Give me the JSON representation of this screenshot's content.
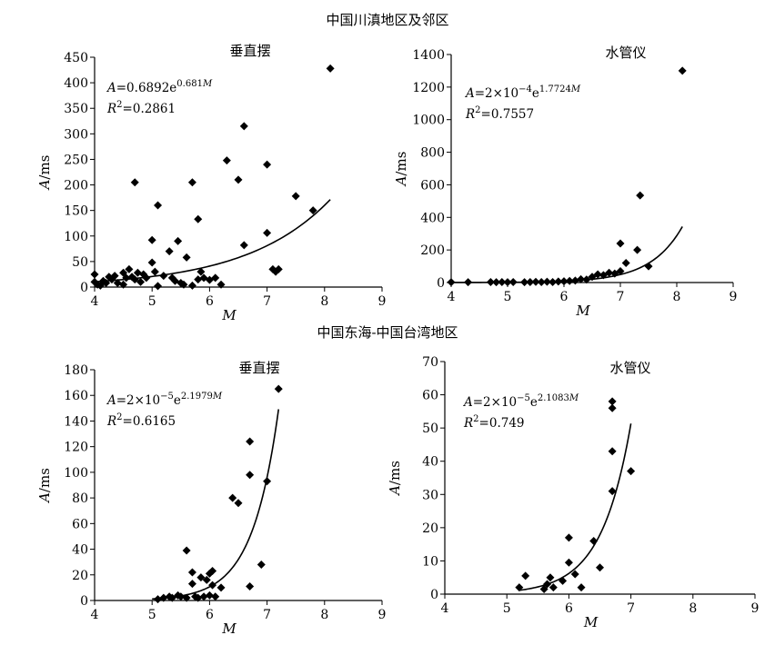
{
  "sections": [
    {
      "title": "中国川滇地区及邻区"
    },
    {
      "title": "中国东海-中国台湾地区"
    }
  ],
  "chart_data": [
    {
      "type": "scatter",
      "title": "垂直摆",
      "xlabel": "M",
      "ylabel": "A/ms",
      "xlim": [
        4,
        9
      ],
      "ylim": [
        0,
        450
      ],
      "xticks": [
        "4",
        "5",
        "6",
        "7",
        "8",
        "9"
      ],
      "yticks": [
        "0",
        "50",
        "100",
        "150",
        "200",
        "250",
        "300",
        "350",
        "400",
        "450"
      ],
      "equation": {
        "prefix": "A",
        "eq": "=0.6892e",
        "exp": "0.681",
        "var": "M"
      },
      "r2": {
        "base": "R",
        "sup": "2",
        "val": "=0.2861"
      },
      "fit": {
        "a": 0.6892,
        "b": 0.681,
        "x_range": [
          4,
          8.1
        ]
      },
      "points": [
        [
          4.0,
          25
        ],
        [
          4.0,
          10
        ],
        [
          4.05,
          5
        ],
        [
          4.1,
          3
        ],
        [
          4.15,
          12
        ],
        [
          4.2,
          8
        ],
        [
          4.25,
          20
        ],
        [
          4.3,
          15
        ],
        [
          4.35,
          22
        ],
        [
          4.4,
          8
        ],
        [
          4.5,
          28
        ],
        [
          4.5,
          5
        ],
        [
          4.55,
          18
        ],
        [
          4.6,
          35
        ],
        [
          4.65,
          20
        ],
        [
          4.7,
          15
        ],
        [
          4.7,
          205
        ],
        [
          4.75,
          28
        ],
        [
          4.8,
          10
        ],
        [
          4.85,
          25
        ],
        [
          4.9,
          18
        ],
        [
          5.0,
          92
        ],
        [
          5.0,
          48
        ],
        [
          5.05,
          30
        ],
        [
          5.1,
          160
        ],
        [
          5.1,
          2
        ],
        [
          5.2,
          22
        ],
        [
          5.3,
          70
        ],
        [
          5.35,
          18
        ],
        [
          5.4,
          12
        ],
        [
          5.45,
          90
        ],
        [
          5.5,
          8
        ],
        [
          5.55,
          5
        ],
        [
          5.6,
          58
        ],
        [
          5.7,
          205
        ],
        [
          5.7,
          3
        ],
        [
          5.8,
          15
        ],
        [
          5.8,
          133
        ],
        [
          5.85,
          30
        ],
        [
          5.9,
          18
        ],
        [
          6.0,
          14
        ],
        [
          6.1,
          18
        ],
        [
          6.2,
          5
        ],
        [
          6.3,
          248
        ],
        [
          6.5,
          210
        ],
        [
          6.6,
          315
        ],
        [
          6.6,
          82
        ],
        [
          7.0,
          240
        ],
        [
          7.0,
          106
        ],
        [
          7.1,
          35
        ],
        [
          7.15,
          30
        ],
        [
          7.2,
          35
        ],
        [
          7.5,
          178
        ],
        [
          7.8,
          150
        ],
        [
          8.1,
          428
        ]
      ]
    },
    {
      "type": "scatter",
      "title": "水管仪",
      "xlabel": "M",
      "ylabel": "A/ms",
      "xlim": [
        4,
        9
      ],
      "ylim": [
        0,
        1400
      ],
      "xticks": [
        "4",
        "5",
        "6",
        "7",
        "8",
        "9"
      ],
      "yticks": [
        "0",
        "200",
        "400",
        "600",
        "800",
        "1000",
        "1200",
        "1400"
      ],
      "equation": {
        "prefix": "A",
        "eq": "=2×10",
        "eqsup": "−4",
        "eq2": "e",
        "exp": "1.7724",
        "var": "M"
      },
      "r2": {
        "base": "R",
        "sup": "2",
        "val": "=0.7557"
      },
      "fit": {
        "a": 0.0002,
        "b": 1.7724,
        "x_range": [
          4,
          8.1
        ]
      },
      "points": [
        [
          4.0,
          2
        ],
        [
          4.3,
          2
        ],
        [
          4.7,
          3
        ],
        [
          4.8,
          2
        ],
        [
          4.9,
          3
        ],
        [
          5.0,
          2
        ],
        [
          5.1,
          3
        ],
        [
          5.3,
          2
        ],
        [
          5.4,
          3
        ],
        [
          5.5,
          4
        ],
        [
          5.6,
          3
        ],
        [
          5.7,
          5
        ],
        [
          5.8,
          3
        ],
        [
          5.9,
          6
        ],
        [
          6.0,
          8
        ],
        [
          6.1,
          10
        ],
        [
          6.2,
          12
        ],
        [
          6.3,
          20
        ],
        [
          6.4,
          18
        ],
        [
          6.5,
          35
        ],
        [
          6.6,
          50
        ],
        [
          6.7,
          45
        ],
        [
          6.8,
          60
        ],
        [
          6.9,
          55
        ],
        [
          7.0,
          70
        ],
        [
          7.0,
          240
        ],
        [
          7.1,
          120
        ],
        [
          7.3,
          200
        ],
        [
          7.35,
          535
        ],
        [
          7.5,
          100
        ],
        [
          8.1,
          1300
        ]
      ]
    },
    {
      "type": "scatter",
      "title": "垂直摆",
      "xlabel": "M",
      "ylabel": "A/ms",
      "xlim": [
        4,
        9
      ],
      "ylim": [
        0,
        180
      ],
      "xticks": [
        "4",
        "5",
        "6",
        "7",
        "8",
        "9"
      ],
      "yticks": [
        "0",
        "20",
        "40",
        "60",
        "80",
        "100",
        "120",
        "140",
        "160",
        "180"
      ],
      "equation": {
        "prefix": "A",
        "eq": "=2×10",
        "eqsup": "−5",
        "eq2": "e",
        "exp": "2.1979",
        "var": "M"
      },
      "r2": {
        "base": "R",
        "sup": "2",
        "val": "=0.6165"
      },
      "fit": {
        "a": 2e-05,
        "b": 2.1979,
        "x_range": [
          5.0,
          7.2
        ]
      },
      "points": [
        [
          5.1,
          1
        ],
        [
          5.2,
          2
        ],
        [
          5.3,
          3
        ],
        [
          5.35,
          2
        ],
        [
          5.45,
          4
        ],
        [
          5.5,
          3
        ],
        [
          5.6,
          39
        ],
        [
          5.6,
          2
        ],
        [
          5.7,
          22
        ],
        [
          5.7,
          13
        ],
        [
          5.75,
          3
        ],
        [
          5.8,
          2
        ],
        [
          5.85,
          18
        ],
        [
          5.9,
          3
        ],
        [
          5.95,
          16
        ],
        [
          6.0,
          21
        ],
        [
          6.0,
          4
        ],
        [
          6.05,
          23
        ],
        [
          6.05,
          12
        ],
        [
          6.1,
          3
        ],
        [
          6.2,
          10
        ],
        [
          6.4,
          80
        ],
        [
          6.5,
          76
        ],
        [
          6.7,
          124
        ],
        [
          6.7,
          98
        ],
        [
          6.7,
          11
        ],
        [
          6.9,
          28
        ],
        [
          7.0,
          93
        ],
        [
          7.2,
          165
        ]
      ]
    },
    {
      "type": "scatter",
      "title": "水管仪",
      "xlabel": "M",
      "ylabel": "A/ms",
      "xlim": [
        4,
        9
      ],
      "ylim": [
        0,
        70
      ],
      "xticks": [
        "4",
        "5",
        "6",
        "7",
        "8",
        "9"
      ],
      "yticks": [
        "0",
        "10",
        "20",
        "30",
        "40",
        "50",
        "60",
        "70"
      ],
      "equation": {
        "prefix": "A",
        "eq": "=2×10",
        "eqsup": "−5",
        "eq2": "e",
        "exp": "2.1083",
        "var": "M"
      },
      "r2": {
        "base": "R",
        "sup": "2",
        "val": "=0.749"
      },
      "fit": {
        "a": 2e-05,
        "b": 2.1083,
        "x_range": [
          5.2,
          7.0
        ]
      },
      "points": [
        [
          5.2,
          2
        ],
        [
          5.3,
          5.5
        ],
        [
          5.6,
          1.5
        ],
        [
          5.65,
          3
        ],
        [
          5.7,
          5
        ],
        [
          5.75,
          2
        ],
        [
          5.9,
          4
        ],
        [
          6.0,
          17
        ],
        [
          6.0,
          9.5
        ],
        [
          6.1,
          6
        ],
        [
          6.2,
          2
        ],
        [
          6.4,
          16
        ],
        [
          6.5,
          8
        ],
        [
          6.7,
          58
        ],
        [
          6.7,
          56
        ],
        [
          6.7,
          43
        ],
        [
          6.7,
          31
        ],
        [
          7.0,
          37
        ]
      ]
    }
  ]
}
